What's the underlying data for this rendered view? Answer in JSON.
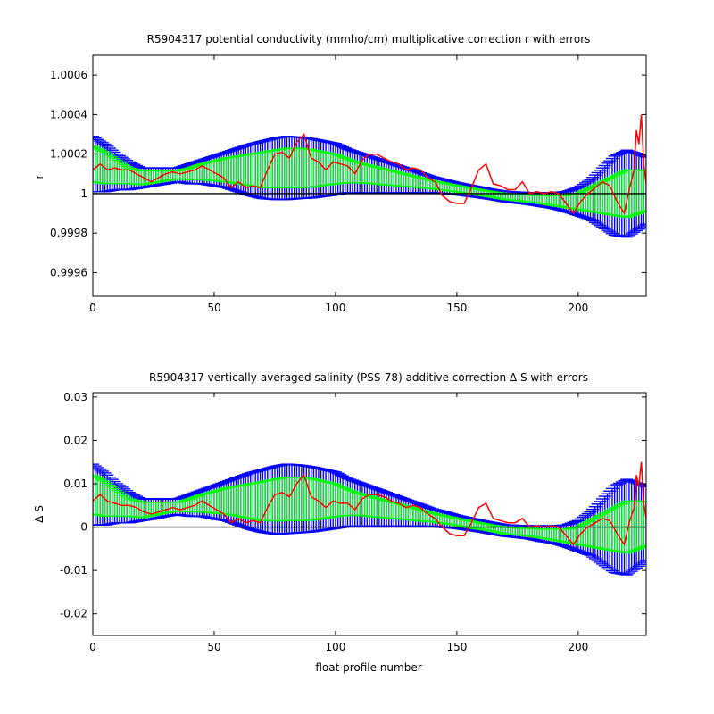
{
  "chart_data": [
    {
      "type": "line",
      "title": "R5904317 potential conductivity (mmho/cm) multiplicative correction r with errors",
      "xlabel": "",
      "ylabel": "r",
      "xlim": [
        0,
        228
      ],
      "ylim": [
        0.99948,
        1.0007
      ],
      "xticks": [
        0,
        50,
        100,
        150,
        200
      ],
      "xtick_labels": [
        "0",
        "50",
        "100",
        "150",
        "200"
      ],
      "yticks": [
        0.9996,
        0.9998,
        1.0,
        1.0002,
        1.0004,
        1.0006
      ],
      "ytick_labels": [
        "0.9996",
        "0.9998",
        "1",
        "1.0002",
        "1.0004",
        "1.0006"
      ],
      "reference_line": 1.0,
      "fit": {
        "x": [
          0,
          5,
          10,
          15,
          20,
          25,
          30,
          35,
          40,
          45,
          50,
          55,
          60,
          65,
          70,
          75,
          80,
          85,
          90,
          95,
          100,
          105,
          110,
          115,
          120,
          125,
          130,
          135,
          140,
          145,
          150,
          155,
          160,
          165,
          170,
          175,
          180,
          185,
          190,
          195,
          200,
          205,
          210,
          215,
          220,
          225,
          228
        ],
        "y": [
          1.00015,
          1.00013,
          1.00011,
          1.00009,
          1.00008,
          1.000085,
          1.00009,
          1.000095,
          1.0001,
          1.00011,
          1.000115,
          1.00012,
          1.00012,
          1.00012,
          1.00012,
          1.000125,
          1.00013,
          1.00013,
          1.000128,
          1.000126,
          1.000124,
          1.000115,
          1.000105,
          1.000095,
          1.000085,
          1.000075,
          1.000065,
          1.000055,
          1.000045,
          1.000035,
          1.000025,
          1.000015,
          1.000005,
          0.999995,
          0.999985,
          0.99998,
          0.999975,
          0.99997,
          0.999965,
          0.99996,
          0.99996,
          0.99997,
          0.99998,
          0.99999,
          1.0,
          1.00001,
          1.000015
        ]
      },
      "inner_error": [
        9e-05,
        8e-05,
        6e-05,
        4e-05,
        3.5e-05,
        3e-05,
        2.5e-05,
        2e-05,
        3e-05,
        4e-05,
        5e-05,
        6e-05,
        7e-05,
        8e-05,
        9e-05,
        9.5e-05,
        0.0001,
        0.0001,
        9.5e-05,
        8.5e-05,
        7.5e-05,
        6e-05,
        5e-05,
        4.5e-05,
        4e-05,
        3.5e-05,
        3e-05,
        2.5e-05,
        2e-05,
        1.8e-05,
        1.6e-05,
        1.5e-05,
        1.4e-05,
        1.4e-05,
        1.5e-05,
        1.6e-05,
        1.8e-05,
        2e-05,
        2.5e-05,
        3e-05,
        4e-05,
        6e-05,
        8e-05,
        0.0001,
        0.00012,
        0.00011,
        0.0001
      ],
      "outer_error": [
        0.00014,
        0.00012,
        9e-05,
        7e-05,
        5e-05,
        4.5e-05,
        4e-05,
        3.5e-05,
        5e-05,
        6e-05,
        7.5e-05,
        9e-05,
        0.00011,
        0.00013,
        0.000145,
        0.000155,
        0.00016,
        0.000155,
        0.00015,
        0.00014,
        0.00013,
        0.00011,
        0.0001,
        9e-05,
        8e-05,
        7e-05,
        6e-05,
        5e-05,
        4e-05,
        3.5e-05,
        3e-05,
        2.8e-05,
        2.6e-05,
        2.5e-05,
        2.6e-05,
        2.8e-05,
        3e-05,
        3.5e-05,
        4e-05,
        5e-05,
        7e-05,
        0.0001,
        0.00015,
        0.0002,
        0.00022,
        0.00019,
        0.00017
      ],
      "series": [
        {
          "color": "#ff0000",
          "x": [
            0,
            3,
            6,
            9,
            12,
            15,
            18,
            21,
            24,
            27,
            30,
            33,
            36,
            39,
            42,
            45,
            48,
            51,
            54,
            57,
            60,
            63,
            66,
            69,
            72,
            75,
            78,
            81,
            84,
            87,
            90,
            93,
            96,
            99,
            102,
            105,
            108,
            111,
            114,
            117,
            120,
            123,
            126,
            129,
            132,
            135,
            138,
            141,
            144,
            147,
            150,
            153,
            156,
            159,
            162,
            165,
            168,
            171,
            174,
            177,
            180,
            183,
            186,
            189,
            192,
            195,
            198,
            201,
            204,
            207,
            210,
            213,
            216,
            219,
            221,
            223,
            224,
            225,
            226,
            227,
            228
          ],
          "y": [
            1.00012,
            1.00015,
            1.00012,
            1.00013,
            1.00012,
            1.00012,
            1.0001,
            1.00008,
            1.00006,
            1.00008,
            1.0001,
            1.00011,
            1.0001,
            1.00011,
            1.00012,
            1.00014,
            1.00012,
            1.0001,
            1.00008,
            1.00003,
            1.00006,
            1.00003,
            1.00004,
            1.00003,
            1.00012,
            1.0002,
            1.00021,
            1.00018,
            1.00026,
            1.0003,
            1.00018,
            1.00016,
            1.00012,
            1.00016,
            1.00015,
            1.00014,
            1.0001,
            1.00017,
            1.0002,
            1.0002,
            1.00018,
            1.00016,
            1.00015,
            1.00012,
            1.00013,
            1.00012,
            1.00008,
            1.00006,
            0.99999,
            0.99996,
            0.99995,
            0.99995,
            1.00003,
            1.00012,
            1.00015,
            1.00005,
            1.00004,
            1.00002,
            1.00002,
            1.00006,
            1.0,
            1.00001,
            1.0,
            1.00001,
            1.0,
            0.99995,
            0.9999,
            0.99996,
            1.0,
            1.00003,
            1.00006,
            1.00004,
            0.99996,
            0.9999,
            1.00002,
            1.00012,
            1.00032,
            1.00025,
            1.0004,
            1.00015,
            1.00005
          ]
        }
      ]
    },
    {
      "type": "line",
      "title": "R5904317 vertically-averaged salinity (PSS-78) additive correction Δ S with errors",
      "xlabel": "float profile number",
      "ylabel": "Δ S",
      "xlim": [
        0,
        228
      ],
      "ylim": [
        -0.025,
        0.031
      ],
      "xticks": [
        0,
        50,
        100,
        150,
        200
      ],
      "xtick_labels": [
        "0",
        "50",
        "100",
        "150",
        "200"
      ],
      "yticks": [
        -0.02,
        -0.01,
        0,
        0.01,
        0.02,
        0.03
      ],
      "ytick_labels": [
        "-0.02",
        "-0.01",
        "0",
        "0.01",
        "0.02",
        "0.03"
      ],
      "reference_line": 0,
      "fit": {
        "x": [
          0,
          5,
          10,
          15,
          20,
          25,
          30,
          35,
          40,
          45,
          50,
          55,
          60,
          65,
          70,
          75,
          80,
          85,
          90,
          95,
          100,
          105,
          110,
          115,
          120,
          125,
          130,
          135,
          140,
          145,
          150,
          155,
          160,
          165,
          170,
          175,
          180,
          185,
          190,
          195,
          200,
          205,
          210,
          215,
          220,
          225,
          228
        ],
        "y": [
          0.0075,
          0.0065,
          0.0055,
          0.0045,
          0.004,
          0.0042,
          0.0045,
          0.0047,
          0.005,
          0.0055,
          0.0057,
          0.006,
          0.006,
          0.006,
          0.006,
          0.0062,
          0.0065,
          0.0065,
          0.0064,
          0.0063,
          0.0062,
          0.0057,
          0.0052,
          0.0047,
          0.0042,
          0.0037,
          0.0032,
          0.0027,
          0.0022,
          0.0017,
          0.0012,
          0.0007,
          0.0002,
          -0.0003,
          -0.0008,
          -0.001,
          -0.0012,
          -0.0015,
          -0.0017,
          -0.002,
          -0.002,
          -0.0015,
          -0.001,
          -0.0005,
          0.0,
          0.0005,
          0.0008
        ]
      },
      "inner_error": [
        0.0045,
        0.004,
        0.003,
        0.002,
        0.0018,
        0.0015,
        0.0012,
        0.001,
        0.0015,
        0.002,
        0.0025,
        0.003,
        0.0035,
        0.004,
        0.0045,
        0.0048,
        0.005,
        0.005,
        0.0048,
        0.0043,
        0.0038,
        0.003,
        0.0025,
        0.0023,
        0.002,
        0.0018,
        0.0015,
        0.0013,
        0.001,
        0.0009,
        0.0008,
        0.0008,
        0.0007,
        0.0007,
        0.0008,
        0.0008,
        0.0009,
        0.001,
        0.0013,
        0.0015,
        0.002,
        0.003,
        0.004,
        0.005,
        0.006,
        0.0055,
        0.005
      ],
      "outer_error": [
        0.007,
        0.006,
        0.0045,
        0.0035,
        0.0025,
        0.0023,
        0.002,
        0.0018,
        0.0025,
        0.003,
        0.0038,
        0.0045,
        0.0055,
        0.0065,
        0.0072,
        0.0078,
        0.008,
        0.0078,
        0.0075,
        0.007,
        0.0065,
        0.0055,
        0.005,
        0.0045,
        0.004,
        0.0035,
        0.003,
        0.0025,
        0.002,
        0.0018,
        0.0015,
        0.0014,
        0.0013,
        0.0013,
        0.0013,
        0.0014,
        0.0015,
        0.0018,
        0.002,
        0.0025,
        0.0035,
        0.005,
        0.0075,
        0.01,
        0.011,
        0.0095,
        0.0085
      ],
      "series": [
        {
          "color": "#ff0000",
          "x": [
            0,
            3,
            6,
            9,
            12,
            15,
            18,
            21,
            24,
            27,
            30,
            33,
            36,
            39,
            42,
            45,
            48,
            51,
            54,
            57,
            60,
            63,
            66,
            69,
            72,
            75,
            78,
            81,
            84,
            87,
            90,
            93,
            96,
            99,
            102,
            105,
            108,
            111,
            114,
            117,
            120,
            123,
            126,
            129,
            132,
            135,
            138,
            141,
            144,
            147,
            150,
            153,
            156,
            159,
            162,
            165,
            168,
            171,
            174,
            177,
            180,
            183,
            186,
            189,
            192,
            195,
            198,
            201,
            204,
            207,
            210,
            213,
            216,
            219,
            221,
            223,
            224,
            225,
            226,
            227,
            228
          ],
          "y": [
            0.006,
            0.0075,
            0.006,
            0.0055,
            0.005,
            0.005,
            0.0045,
            0.0035,
            0.003,
            0.0035,
            0.004,
            0.0045,
            0.004,
            0.0045,
            0.005,
            0.006,
            0.005,
            0.004,
            0.003,
            0.001,
            0.002,
            0.001,
            0.0015,
            0.001,
            0.0045,
            0.0075,
            0.008,
            0.007,
            0.01,
            0.012,
            0.007,
            0.006,
            0.0045,
            0.006,
            0.0055,
            0.0055,
            0.004,
            0.0065,
            0.0075,
            0.0075,
            0.007,
            0.006,
            0.0055,
            0.0045,
            0.005,
            0.0045,
            0.003,
            0.002,
            0.0,
            -0.0015,
            -0.002,
            -0.002,
            0.001,
            0.0045,
            0.0055,
            0.002,
            0.0015,
            0.001,
            0.001,
            0.002,
            0.0,
            0.0003,
            0.0,
            0.0003,
            0.0,
            -0.002,
            -0.004,
            -0.0015,
            0.0,
            0.001,
            0.002,
            0.0015,
            -0.0015,
            -0.004,
            0.001,
            0.0045,
            0.012,
            0.0095,
            0.015,
            0.0055,
            0.002
          ]
        }
      ]
    }
  ]
}
